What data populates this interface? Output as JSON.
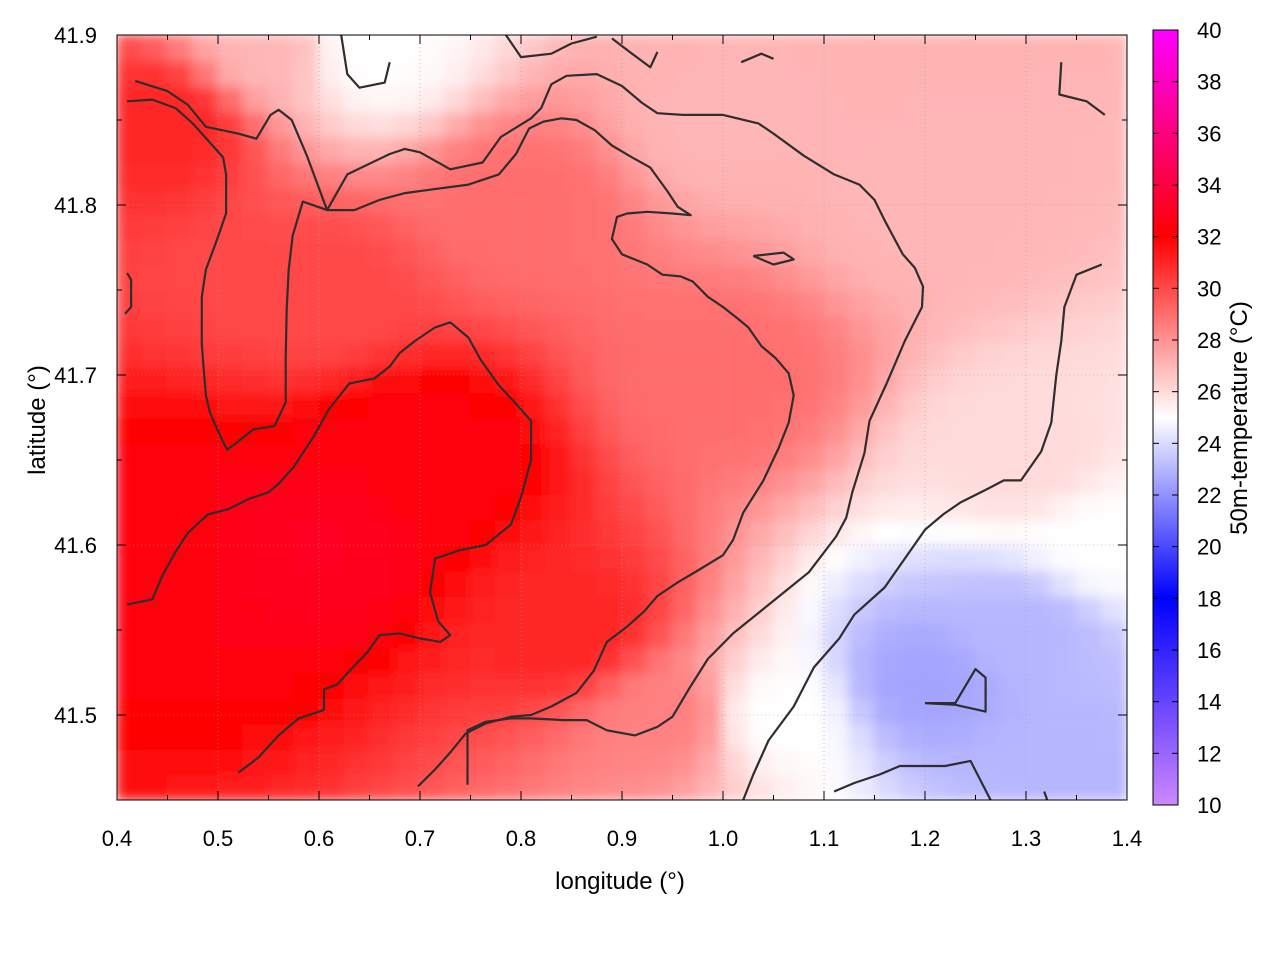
{
  "chart_data": {
    "type": "heatmap",
    "title": "",
    "xlabel": "longitude (°)",
    "ylabel": "latitude (°)",
    "colorbar_label": "50m-temperature (°C)",
    "xlim": [
      0.4,
      1.4
    ],
    "ylim": [
      41.45,
      41.9
    ],
    "x_ticks": [
      0.4,
      0.5,
      0.6,
      0.7,
      0.8,
      0.9,
      1.0,
      1.1,
      1.2,
      1.3,
      1.4
    ],
    "y_ticks": [
      41.5,
      41.6,
      41.7,
      41.8,
      41.9
    ],
    "x_tick_labels": [
      "0.4",
      "0.5",
      "0.6",
      "0.7",
      "0.8",
      "0.9",
      "1.0",
      "1.1",
      "1.2",
      "1.3",
      "1.4"
    ],
    "y_tick_labels": [
      "41.5",
      "41.6",
      "41.7",
      "41.8",
      "41.9"
    ],
    "colorbar_range": [
      10,
      40
    ],
    "colorbar_ticks": [
      "10",
      "12",
      "14",
      "16",
      "18",
      "20",
      "22",
      "24",
      "26",
      "28",
      "30",
      "32",
      "34",
      "36",
      "38",
      "40"
    ],
    "grid": true,
    "colormap": [
      {
        "value": 10,
        "color": "#cc88ff"
      },
      {
        "value": 18,
        "color": "#0000ff"
      },
      {
        "value": 25,
        "color": "#ffffff"
      },
      {
        "value": 32,
        "color": "#ff0000"
      },
      {
        "value": 40,
        "color": "#ff00ff"
      }
    ],
    "field_samples": [
      {
        "x": 0.45,
        "y": 41.85,
        "value": 31
      },
      {
        "x": 0.45,
        "y": 41.6,
        "value": 32.5
      },
      {
        "x": 0.6,
        "y": 41.6,
        "value": 33
      },
      {
        "x": 0.7,
        "y": 41.65,
        "value": 32.5
      },
      {
        "x": 0.6,
        "y": 41.75,
        "value": 30
      },
      {
        "x": 0.85,
        "y": 41.55,
        "value": 31
      },
      {
        "x": 0.8,
        "y": 41.8,
        "value": 29
      },
      {
        "x": 1.0,
        "y": 41.7,
        "value": 29
      },
      {
        "x": 1.0,
        "y": 41.85,
        "value": 27
      },
      {
        "x": 1.2,
        "y": 41.8,
        "value": 27
      },
      {
        "x": 1.3,
        "y": 41.65,
        "value": 26
      },
      {
        "x": 0.95,
        "y": 41.5,
        "value": 28.5
      },
      {
        "x": 1.05,
        "y": 41.5,
        "value": 25
      },
      {
        "x": 1.2,
        "y": 41.52,
        "value": 22.5
      },
      {
        "x": 1.3,
        "y": 41.55,
        "value": 23
      },
      {
        "x": 1.35,
        "y": 41.47,
        "value": 23
      },
      {
        "x": 0.65,
        "y": 41.89,
        "value": 25
      },
      {
        "x": 0.55,
        "y": 41.89,
        "value": 27
      },
      {
        "x": 1.38,
        "y": 41.6,
        "value": 25
      }
    ],
    "contour_lines": [
      [
        [
          0.418,
          41.873
        ],
        [
          0.45,
          41.867
        ],
        [
          0.47,
          41.859
        ],
        [
          0.488,
          41.846
        ],
        [
          0.52,
          41.842
        ],
        [
          0.538,
          41.839
        ],
        [
          0.552,
          41.853
        ],
        [
          0.56,
          41.856
        ],
        [
          0.573,
          41.85
        ],
        [
          0.588,
          41.829
        ],
        [
          0.608,
          41.797
        ],
        [
          0.628,
          41.818
        ],
        [
          0.67,
          41.83
        ],
        [
          0.685,
          41.833
        ],
        [
          0.7,
          41.831
        ],
        [
          0.73,
          41.821
        ],
        [
          0.762,
          41.825
        ],
        [
          0.78,
          41.84
        ],
        [
          0.81,
          41.851
        ],
        [
          0.82,
          41.857
        ],
        [
          0.83,
          41.871
        ],
        [
          0.845,
          41.876
        ],
        [
          0.875,
          41.877
        ],
        [
          0.9,
          41.87
        ],
        [
          0.92,
          41.86
        ],
        [
          0.935,
          41.854
        ],
        [
          0.96,
          41.853
        ],
        [
          1.0,
          41.853
        ],
        [
          1.035,
          41.848
        ],
        [
          1.05,
          41.842
        ],
        [
          1.08,
          41.829
        ],
        [
          1.11,
          41.818
        ],
        [
          1.135,
          41.812
        ],
        [
          1.15,
          41.803
        ],
        [
          1.16,
          41.791
        ],
        [
          1.178,
          41.771
        ],
        [
          1.19,
          41.763
        ],
        [
          1.198,
          41.752
        ],
        [
          1.197,
          41.74
        ],
        [
          1.18,
          41.72
        ],
        [
          1.162,
          41.695
        ],
        [
          1.145,
          41.673
        ],
        [
          1.14,
          41.654
        ],
        [
          1.128,
          41.631
        ],
        [
          1.122,
          41.616
        ],
        [
          1.112,
          41.605
        ],
        [
          1.085,
          41.584
        ],
        [
          1.06,
          41.572
        ],
        [
          1.035,
          41.56
        ],
        [
          1.01,
          41.548
        ],
        [
          0.985,
          41.533
        ],
        [
          0.968,
          41.517
        ],
        [
          0.95,
          41.499
        ],
        [
          0.935,
          41.493
        ],
        [
          0.913,
          41.488
        ],
        [
          0.885,
          41.491
        ],
        [
          0.865,
          41.497
        ],
        [
          0.842,
          41.497
        ],
        [
          0.81,
          41.498
        ],
        [
          0.79,
          41.498
        ],
        [
          0.765,
          41.496
        ],
        [
          0.747,
          41.491
        ],
        [
          0.747,
          41.475
        ],
        [
          0.747,
          41.459
        ]
      ],
      [
        [
          0.41,
          41.861
        ],
        [
          0.435,
          41.862
        ],
        [
          0.458,
          41.857
        ],
        [
          0.475,
          41.848
        ],
        [
          0.49,
          41.838
        ],
        [
          0.505,
          41.828
        ],
        [
          0.508,
          41.818
        ],
        [
          0.508,
          41.795
        ],
        [
          0.498,
          41.778
        ],
        [
          0.488,
          41.762
        ],
        [
          0.484,
          41.746
        ],
        [
          0.484,
          41.718
        ],
        [
          0.486,
          41.702
        ],
        [
          0.488,
          41.688
        ],
        [
          0.492,
          41.678
        ],
        [
          0.5,
          41.667
        ],
        [
          0.509,
          41.656
        ],
        [
          0.518,
          41.66
        ],
        [
          0.535,
          41.668
        ],
        [
          0.556,
          41.67
        ],
        [
          0.567,
          41.684
        ],
        [
          0.567,
          41.71
        ],
        [
          0.568,
          41.739
        ],
        [
          0.57,
          41.762
        ],
        [
          0.574,
          41.782
        ],
        [
          0.584,
          41.802
        ],
        [
          0.608,
          41.797
        ],
        [
          0.635,
          41.797
        ],
        [
          0.66,
          41.803
        ],
        [
          0.685,
          41.807
        ],
        [
          0.71,
          41.809
        ],
        [
          0.748,
          41.812
        ],
        [
          0.778,
          41.818
        ],
        [
          0.795,
          41.83
        ],
        [
          0.808,
          41.845
        ],
        [
          0.822,
          41.849
        ],
        [
          0.84,
          41.851
        ],
        [
          0.855,
          41.85
        ],
        [
          0.873,
          41.844
        ],
        [
          0.89,
          41.835
        ],
        [
          0.91,
          41.828
        ],
        [
          0.928,
          41.822
        ],
        [
          0.945,
          41.808
        ],
        [
          0.955,
          41.799
        ],
        [
          0.968,
          41.794
        ],
        [
          0.95,
          41.795
        ],
        [
          0.925,
          41.796
        ],
        [
          0.905,
          41.795
        ],
        [
          0.895,
          41.793
        ],
        [
          0.89,
          41.78
        ],
        [
          0.9,
          41.771
        ],
        [
          0.925,
          41.765
        ],
        [
          0.94,
          41.759
        ],
        [
          0.958,
          41.758
        ],
        [
          0.97,
          41.755
        ],
        [
          0.985,
          41.746
        ],
        [
          1.0,
          41.74
        ],
        [
          1.015,
          41.733
        ],
        [
          1.025,
          41.728
        ],
        [
          1.038,
          41.717
        ],
        [
          1.052,
          41.71
        ],
        [
          1.065,
          41.701
        ],
        [
          1.07,
          41.688
        ],
        [
          1.065,
          41.672
        ],
        [
          1.055,
          41.657
        ],
        [
          1.04,
          41.638
        ],
        [
          1.02,
          41.619
        ],
        [
          1.01,
          41.603
        ],
        [
          1.0,
          41.594
        ],
        [
          0.975,
          41.585
        ],
        [
          0.955,
          41.578
        ],
        [
          0.935,
          41.57
        ],
        [
          0.922,
          41.561
        ],
        [
          0.905,
          41.552
        ],
        [
          0.885,
          41.543
        ],
        [
          0.872,
          41.526
        ],
        [
          0.855,
          41.513
        ],
        [
          0.83,
          41.505
        ],
        [
          0.81,
          41.5
        ],
        [
          0.79,
          41.499
        ],
        [
          0.765,
          41.495
        ],
        [
          0.745,
          41.489
        ],
        [
          0.73,
          41.478
        ],
        [
          0.715,
          41.468
        ],
        [
          0.698,
          41.458
        ]
      ],
      [
        [
          0.41,
          41.565
        ],
        [
          0.435,
          41.568
        ],
        [
          0.445,
          41.582
        ],
        [
          0.458,
          41.596
        ],
        [
          0.47,
          41.607
        ],
        [
          0.49,
          41.618
        ],
        [
          0.51,
          41.621
        ],
        [
          0.53,
          41.627
        ],
        [
          0.55,
          41.631
        ],
        [
          0.56,
          41.636
        ],
        [
          0.575,
          41.646
        ],
        [
          0.595,
          41.664
        ],
        [
          0.61,
          41.68
        ],
        [
          0.63,
          41.695
        ],
        [
          0.655,
          41.698
        ],
        [
          0.67,
          41.705
        ],
        [
          0.68,
          41.713
        ],
        [
          0.695,
          41.72
        ],
        [
          0.715,
          41.728
        ],
        [
          0.73,
          41.731
        ],
        [
          0.748,
          41.722
        ],
        [
          0.76,
          41.709
        ],
        [
          0.778,
          41.694
        ],
        [
          0.795,
          41.683
        ],
        [
          0.81,
          41.673
        ],
        [
          0.81,
          41.65
        ],
        [
          0.8,
          41.628
        ],
        [
          0.79,
          41.612
        ],
        [
          0.765,
          41.6
        ],
        [
          0.74,
          41.597
        ],
        [
          0.715,
          41.592
        ],
        [
          0.71,
          41.572
        ],
        [
          0.718,
          41.555
        ],
        [
          0.73,
          41.547
        ],
        [
          0.72,
          41.543
        ],
        [
          0.7,
          41.545
        ],
        [
          0.68,
          41.548
        ],
        [
          0.66,
          41.547
        ],
        [
          0.648,
          41.537
        ],
        [
          0.632,
          41.527
        ],
        [
          0.618,
          41.518
        ],
        [
          0.605,
          41.515
        ],
        [
          0.605,
          41.503
        ],
        [
          0.58,
          41.498
        ],
        [
          0.56,
          41.488
        ],
        [
          0.54,
          41.475
        ],
        [
          0.52,
          41.466
        ]
      ],
      [
        [
          0.41,
          41.76
        ],
        [
          0.414,
          41.756
        ],
        [
          0.414,
          41.74
        ],
        [
          0.408,
          41.736
        ]
      ],
      [
        [
          0.622,
          41.9
        ],
        [
          0.628,
          41.877
        ],
        [
          0.64,
          41.869
        ],
        [
          0.665,
          41.872
        ],
        [
          0.67,
          41.884
        ]
      ],
      [
        [
          0.785,
          41.9
        ],
        [
          0.8,
          41.887
        ],
        [
          0.83,
          41.889
        ],
        [
          0.85,
          41.895
        ],
        [
          0.875,
          41.899
        ]
      ],
      [
        [
          0.89,
          41.898
        ],
        [
          0.91,
          41.889
        ],
        [
          0.928,
          41.881
        ],
        [
          0.935,
          41.89
        ]
      ],
      [
        [
          1.018,
          41.884
        ],
        [
          1.038,
          41.889
        ],
        [
          1.05,
          41.886
        ]
      ],
      [
        [
          1.335,
          41.884
        ],
        [
          1.333,
          41.865
        ],
        [
          1.36,
          41.861
        ],
        [
          1.378,
          41.853
        ]
      ],
      [
        [
          1.03,
          41.77
        ],
        [
          1.05,
          41.765
        ],
        [
          1.07,
          41.768
        ],
        [
          1.06,
          41.772
        ],
        [
          1.03,
          41.77
        ]
      ],
      [
        [
          1.02,
          41.45
        ],
        [
          1.03,
          41.465
        ],
        [
          1.045,
          41.485
        ],
        [
          1.07,
          41.505
        ],
        [
          1.09,
          41.528
        ],
        [
          1.115,
          41.545
        ],
        [
          1.13,
          41.559
        ],
        [
          1.16,
          41.575
        ],
        [
          1.18,
          41.592
        ],
        [
          1.2,
          41.609
        ],
        [
          1.218,
          41.618
        ],
        [
          1.235,
          41.625
        ],
        [
          1.262,
          41.633
        ],
        [
          1.278,
          41.638
        ],
        [
          1.295,
          41.638
        ],
        [
          1.315,
          41.655
        ],
        [
          1.325,
          41.672
        ],
        [
          1.33,
          41.7
        ],
        [
          1.335,
          41.72
        ],
        [
          1.338,
          41.74
        ],
        [
          1.35,
          41.759
        ],
        [
          1.375,
          41.765
        ]
      ],
      [
        [
          1.2,
          41.507
        ],
        [
          1.23,
          41.507
        ],
        [
          1.25,
          41.527
        ],
        [
          1.26,
          41.522
        ],
        [
          1.26,
          41.502
        ],
        [
          1.23,
          41.506
        ],
        [
          1.2,
          41.507
        ]
      ],
      [
        [
          1.11,
          41.455
        ],
        [
          1.13,
          41.46
        ],
        [
          1.155,
          41.465
        ],
        [
          1.175,
          41.47
        ],
        [
          1.22,
          41.47
        ],
        [
          1.245,
          41.473
        ],
        [
          1.265,
          41.45
        ]
      ],
      [
        [
          1.318,
          41.455
        ],
        [
          1.321,
          41.45
        ]
      ]
    ]
  }
}
